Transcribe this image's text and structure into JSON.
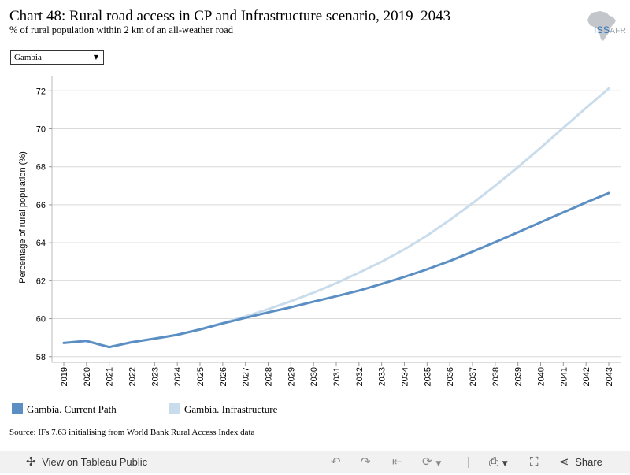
{
  "header": {
    "title": "Chart 48: Rural road access in CP and Infrastructure scenario, 2019–2043",
    "subtitle": "% of rural population within 2 km of an all-weather road",
    "logo_text": "ISS",
    "logo_text_suffix": "AFR"
  },
  "filter": {
    "selected": "Gambia",
    "arrow_icon": "triangle-down-icon"
  },
  "chart_data": {
    "type": "line",
    "title": "Chart 48: Rural road access in CP and Infrastructure scenario, 2019–2043",
    "ylabel": "Percentage of rural population (%)",
    "xlabel": "",
    "ylim": [
      57.7,
      72.8
    ],
    "yticks": [
      58,
      60,
      62,
      64,
      66,
      68,
      70,
      72
    ],
    "grid": true,
    "legend_position": "bottom-left",
    "x": [
      "2019",
      "2020",
      "2021",
      "2022",
      "2023",
      "2024",
      "2025",
      "2026",
      "2027",
      "2028",
      "2029",
      "2030",
      "2031",
      "2032",
      "2033",
      "2034",
      "2035",
      "2036",
      "2037",
      "2038",
      "2039",
      "2040",
      "2041",
      "2042",
      "2043"
    ],
    "series": [
      {
        "name": "Gambia. Current Path",
        "color": "#5b8fc4",
        "values": [
          58.72,
          58.83,
          58.5,
          58.76,
          58.95,
          59.15,
          59.43,
          59.75,
          60.05,
          60.33,
          60.6,
          60.9,
          61.18,
          61.48,
          61.83,
          62.2,
          62.6,
          63.04,
          63.53,
          64.03,
          64.55,
          65.08,
          65.6,
          66.12,
          66.62
        ]
      },
      {
        "name": "Gambia. Infrastructure",
        "color": "#c9dcec",
        "values": [
          58.72,
          58.83,
          58.5,
          58.76,
          58.95,
          59.15,
          59.45,
          59.78,
          60.12,
          60.5,
          60.92,
          61.37,
          61.87,
          62.42,
          63.0,
          63.65,
          64.38,
          65.2,
          66.08,
          67.0,
          67.98,
          69.0,
          70.05,
          71.1,
          72.12
        ]
      }
    ]
  },
  "legend": [
    {
      "label": "Gambia. Current Path",
      "color": "#5b8fc4"
    },
    {
      "label": "Gambia. Infrastructure",
      "color": "#c9dcec"
    }
  ],
  "source": "Source: IFs 7.63 initialising from World Bank Rural Access Index data",
  "toolbar": {
    "view_label": "View on Tableau Public",
    "share_label": "Share",
    "icons": [
      "tableau-logo-icon",
      "undo-icon",
      "redo-icon",
      "revert-icon",
      "refresh-icon",
      "download-icon",
      "fullscreen-icon",
      "share-icon"
    ]
  }
}
